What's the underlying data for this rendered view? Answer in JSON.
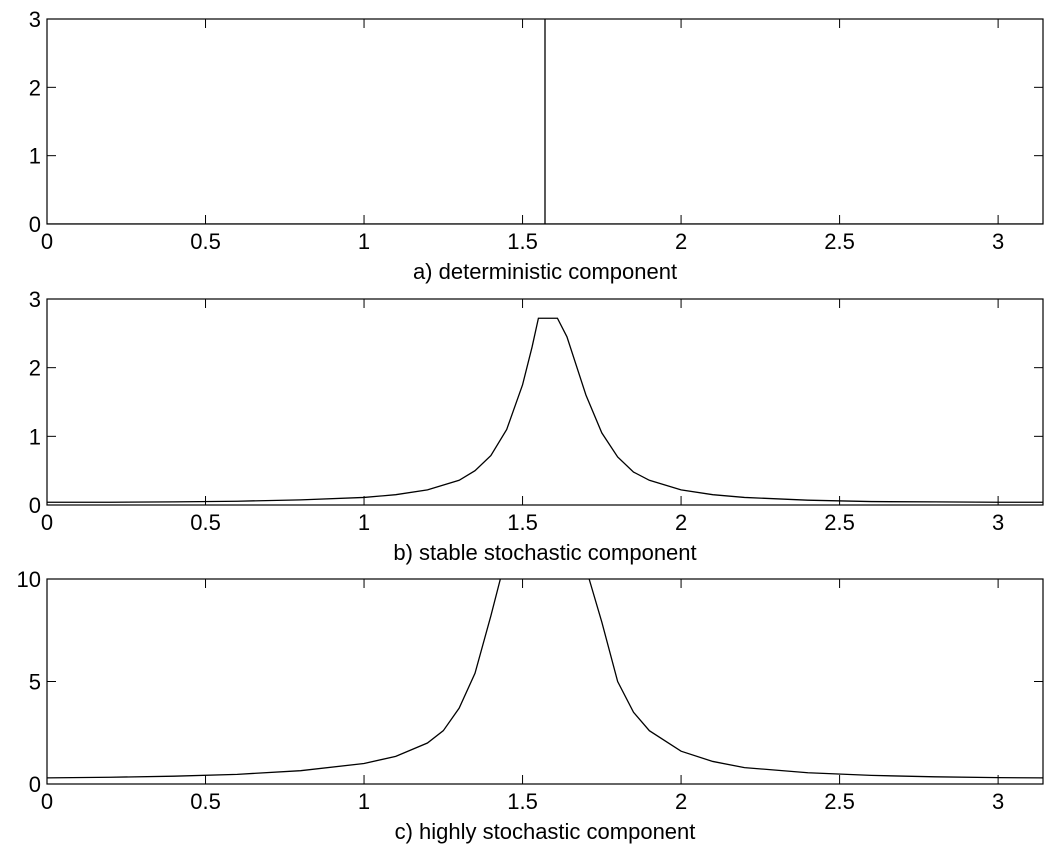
{
  "chart_data": [
    {
      "type": "line",
      "caption": "a) deterministic component",
      "xlim": [
        0,
        3.1416
      ],
      "ylim": [
        0,
        3
      ],
      "x_ticks": [
        0,
        0.5,
        1,
        1.5,
        2,
        2.5,
        3
      ],
      "x_tick_labels": [
        "0",
        "0.5",
        "1",
        "1.5",
        "2",
        "2.5",
        "3"
      ],
      "y_ticks": [
        0,
        1,
        2,
        3
      ],
      "y_tick_labels": [
        "0",
        "1",
        "2",
        "3"
      ],
      "grid": false,
      "series": [
        {
          "x": [
            0,
            1.5708,
            1.5708,
            1.5708,
            3.1416
          ],
          "y": [
            0,
            0,
            3,
            0,
            0
          ]
        }
      ]
    },
    {
      "type": "line",
      "caption": "b) stable stochastic component",
      "xlim": [
        0,
        3.1416
      ],
      "ylim": [
        0,
        3
      ],
      "x_ticks": [
        0,
        0.5,
        1,
        1.5,
        2,
        2.5,
        3
      ],
      "x_tick_labels": [
        "0",
        "0.5",
        "1",
        "1.5",
        "2",
        "2.5",
        "3"
      ],
      "y_ticks": [
        0,
        1,
        2,
        3
      ],
      "y_tick_labels": [
        "0",
        "1",
        "2",
        "3"
      ],
      "grid": false,
      "series": [
        {
          "x": [
            0,
            0.2,
            0.4,
            0.6,
            0.8,
            1.0,
            1.1,
            1.2,
            1.3,
            1.35,
            1.4,
            1.45,
            1.5,
            1.53,
            1.55,
            1.59,
            1.61,
            1.64,
            1.7,
            1.75,
            1.8,
            1.85,
            1.9,
            2.0,
            2.1,
            2.2,
            2.4,
            2.6,
            2.8,
            3.0,
            3.1416
          ],
          "y": [
            0.04,
            0.04,
            0.045,
            0.055,
            0.075,
            0.11,
            0.15,
            0.22,
            0.36,
            0.5,
            0.72,
            1.1,
            1.75,
            2.3,
            2.72,
            2.72,
            2.72,
            2.45,
            1.6,
            1.05,
            0.7,
            0.48,
            0.36,
            0.22,
            0.15,
            0.11,
            0.07,
            0.05,
            0.045,
            0.04,
            0.04
          ]
        }
      ]
    },
    {
      "type": "line",
      "caption": "c) highly stochastic component",
      "xlim": [
        0,
        3.1416
      ],
      "ylim": [
        0,
        10
      ],
      "x_ticks": [
        0,
        0.5,
        1,
        1.5,
        2,
        2.5,
        3
      ],
      "x_tick_labels": [
        "0",
        "0.5",
        "1",
        "1.5",
        "2",
        "2.5",
        "3"
      ],
      "y_ticks": [
        0,
        5,
        10
      ],
      "y_tick_labels": [
        "0",
        "5",
        "10"
      ],
      "grid": false,
      "series": [
        {
          "x": [
            0,
            0.2,
            0.4,
            0.6,
            0.8,
            1.0,
            1.1,
            1.2,
            1.25,
            1.3,
            1.35,
            1.4,
            1.43
          ],
          "y": [
            0.3,
            0.33,
            0.38,
            0.47,
            0.65,
            1.0,
            1.35,
            2.0,
            2.6,
            3.7,
            5.4,
            8.2,
            10
          ]
        },
        {
          "x": [
            1.71,
            1.75,
            1.8,
            1.85,
            1.9,
            2.0,
            2.1,
            2.2,
            2.4,
            2.6,
            2.8,
            3.0,
            3.1416
          ],
          "y": [
            10,
            7.9,
            5.0,
            3.5,
            2.6,
            1.6,
            1.1,
            0.8,
            0.55,
            0.42,
            0.35,
            0.31,
            0.3
          ]
        }
      ]
    }
  ]
}
